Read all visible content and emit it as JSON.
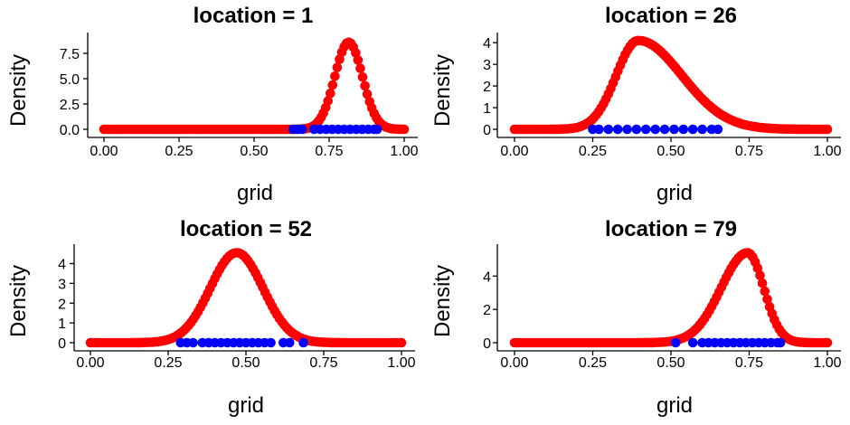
{
  "chart_data": [
    {
      "type": "scatter",
      "title": "location =  1",
      "xlabel": "grid",
      "ylabel": "Density",
      "xlim": [
        0,
        1
      ],
      "ylim": [
        0,
        9.2
      ],
      "xticks": [
        "0.00",
        "0.25",
        "0.50",
        "0.75",
        "1.00"
      ],
      "yticks": [
        "0.0",
        "2.5",
        "5.0",
        "7.5"
      ],
      "ytick_values": [
        0,
        2.5,
        5,
        7.5
      ],
      "colors": {
        "density": "#ff0000",
        "observations": "#0000ff"
      },
      "density": {
        "shape": "gaussian",
        "center": 0.815,
        "sd": 0.046,
        "peak": 8.6
      },
      "observations": [
        0.63,
        0.645,
        0.66,
        0.7,
        0.72,
        0.74,
        0.76,
        0.78,
        0.8,
        0.82,
        0.84,
        0.86,
        0.88,
        0.9,
        0.91
      ]
    },
    {
      "type": "scatter",
      "title": "location =  26",
      "xlabel": "grid",
      "ylabel": "Density",
      "xlim": [
        0,
        1
      ],
      "ylim": [
        0,
        4.3
      ],
      "xticks": [
        "0.00",
        "0.25",
        "0.50",
        "0.75",
        "1.00"
      ],
      "yticks": [
        "0",
        "1",
        "2",
        "3",
        "4"
      ],
      "ytick_values": [
        0,
        1,
        2,
        3,
        4
      ],
      "colors": {
        "density": "#ff0000",
        "observations": "#0000ff"
      },
      "density": {
        "shape": "skewed",
        "center": 0.395,
        "sd_left": 0.07,
        "sd_right": 0.14,
        "peak": 4.1
      },
      "observations": [
        0.25,
        0.27,
        0.3,
        0.33,
        0.36,
        0.39,
        0.42,
        0.45,
        0.48,
        0.51,
        0.54,
        0.57,
        0.6,
        0.63,
        0.65
      ]
    },
    {
      "type": "scatter",
      "title": "location =  52",
      "xlabel": "grid",
      "ylabel": "Density",
      "xlim": [
        0,
        1
      ],
      "ylim": [
        0,
        4.8
      ],
      "xticks": [
        "0.00",
        "0.25",
        "0.50",
        "0.75",
        "1.00"
      ],
      "yticks": [
        "0",
        "1",
        "2",
        "3",
        "4"
      ],
      "ytick_values": [
        0,
        1,
        2,
        3,
        4
      ],
      "colors": {
        "density": "#ff0000",
        "observations": "#0000ff"
      },
      "density": {
        "shape": "gaussian",
        "center": 0.47,
        "sd": 0.085,
        "peak": 4.55
      },
      "observations": [
        0.29,
        0.31,
        0.33,
        0.36,
        0.38,
        0.4,
        0.42,
        0.44,
        0.46,
        0.48,
        0.5,
        0.52,
        0.54,
        0.56,
        0.58,
        0.62,
        0.64,
        0.685
      ]
    },
    {
      "type": "scatter",
      "title": "location =  79",
      "xlabel": "grid",
      "ylabel": "Density",
      "xlim": [
        0,
        1
      ],
      "ylim": [
        0,
        5.7
      ],
      "xticks": [
        "0.00",
        "0.25",
        "0.50",
        "0.75",
        "1.00"
      ],
      "yticks": [
        "0",
        "2",
        "4"
      ],
      "ytick_values": [
        0,
        2,
        4
      ],
      "colors": {
        "density": "#ff0000",
        "observations": "#0000ff"
      },
      "density": {
        "shape": "skewed",
        "center": 0.745,
        "sd_left": 0.085,
        "sd_right": 0.052,
        "peak": 5.4
      },
      "observations": [
        0.515,
        0.57,
        0.6,
        0.62,
        0.64,
        0.66,
        0.68,
        0.7,
        0.72,
        0.74,
        0.76,
        0.78,
        0.8,
        0.82,
        0.84,
        0.85
      ]
    }
  ]
}
